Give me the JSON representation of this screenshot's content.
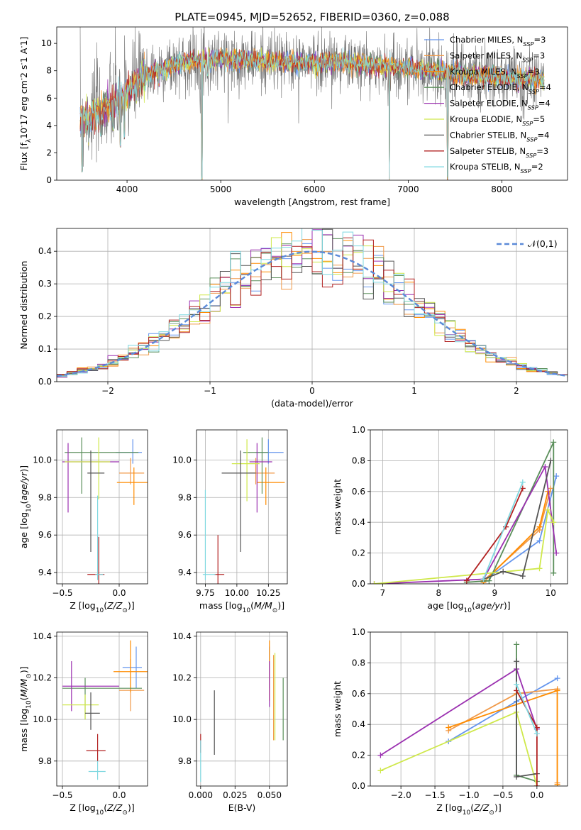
{
  "figure": {
    "title": "PLATE=0945, MJD=52652, FIBERID=0360, z=0.088",
    "series_colors": [
      "#6495ed",
      "#f09a4a",
      "#ff8c00",
      "#5b8f5b",
      "#9b30b0",
      "#cfe84a",
      "#555555",
      "#b22222",
      "#7fd8e0"
    ],
    "legend_labels": [
      "Chabrier MILES, N$_{SSP}$=3",
      "Salpeter MILES, N$_{SSP}$=3",
      "Kroupa MILES, N$_{SSP}$=3",
      "Chabrier ELODIE, N$_{SSP}$=4",
      "Salpeter ELODIE, N$_{SSP}$=4",
      "Kroupa ELODIE, N$_{SSP}$=5",
      "Chabrier STELIB, N$_{SSP}$=4",
      "Salpeter STELIB, N$_{SSP}$=3",
      "Kroupa STELIB, N$_{SSP}$=2"
    ]
  },
  "chart_data": [
    {
      "id": "spectrum",
      "type": "line",
      "xlabel": "wavelength [Angstrom, rest frame]",
      "ylabel": "Flux [f_λ10^-17 erg cm^-2 s^-1 A^-1]",
      "xlim": [
        3250,
        8700
      ],
      "ylim": [
        0,
        11.2
      ],
      "xticks": [
        4000,
        5000,
        6000,
        7000,
        8000
      ],
      "yticks": [
        0,
        2,
        4,
        6,
        8,
        10
      ],
      "legend_position": "upper-right",
      "continuum": [
        [
          3500,
          4.5
        ],
        [
          3700,
          5.0
        ],
        [
          3900,
          5.8
        ],
        [
          4000,
          6.4
        ],
        [
          4100,
          7.2
        ],
        [
          4300,
          8.0
        ],
        [
          4600,
          8.6
        ],
        [
          5000,
          8.9
        ],
        [
          5400,
          8.7
        ],
        [
          5800,
          8.6
        ],
        [
          6200,
          8.7
        ],
        [
          6600,
          8.4
        ],
        [
          7000,
          8.2
        ],
        [
          7400,
          7.9
        ],
        [
          7800,
          7.6
        ],
        [
          8200,
          7.4
        ],
        [
          8450,
          7.3
        ]
      ],
      "dips": [
        [
          3520,
          0.6
        ],
        [
          3590,
          2.5
        ],
        [
          3720,
          3.2
        ],
        [
          3850,
          3.6
        ],
        [
          3930,
          2.4
        ],
        [
          3970,
          3.0
        ],
        [
          4100,
          5.6
        ],
        [
          4340,
          6.8
        ],
        [
          4800,
          0.0
        ],
        [
          4860,
          7.6
        ],
        [
          5180,
          8.0
        ],
        [
          5890,
          8.0
        ],
        [
          6560,
          7.6
        ],
        [
          6800,
          0.0
        ],
        [
          7420,
          0.0
        ]
      ]
    },
    {
      "id": "residuals",
      "type": "histogram",
      "xlabel": "(data-model)/error",
      "ylabel": "Normed distribution",
      "xlim": [
        -2.5,
        2.5
      ],
      "ylim": [
        0,
        0.47
      ],
      "xticks": [
        -2,
        -1,
        0,
        1,
        2
      ],
      "yticks": [
        0.0,
        0.1,
        0.2,
        0.3,
        0.4
      ],
      "legend": "$\\mathcal{N}(0,1)$",
      "legend_position": "upper-right",
      "bin_width": 0.1
    },
    {
      "id": "age-vs-Z",
      "type": "errorbar",
      "xlabel": "Z [log$_{10}$($Z/Z_\\odot$)]",
      "ylabel": "age  [log$_{10}$($age/yr$)]",
      "xlim": [
        -0.55,
        0.25
      ],
      "ylim": [
        9.34,
        10.16
      ],
      "xticks": [
        -0.5,
        0.0
      ],
      "yticks": [
        9.4,
        9.6,
        9.8,
        10.0
      ],
      "points": [
        {
          "x": 0.12,
          "y": 10.04,
          "xerr": [
            0.15,
            0.08
          ],
          "yerr": [
            0.06,
            0.07
          ]
        },
        {
          "x": 0.1,
          "y": 9.93,
          "xerr": [
            0.1,
            0.12
          ],
          "yerr": [
            0.06,
            0.08
          ]
        },
        {
          "x": 0.13,
          "y": 9.88,
          "xerr": [
            0.15,
            0.14
          ],
          "yerr": [
            0.12,
            0.08
          ]
        },
        {
          "x": -0.33,
          "y": 10.04,
          "xerr": [
            0.15,
            0.5
          ],
          "yerr": [
            0.22,
            0.08
          ]
        },
        {
          "x": -0.45,
          "y": 9.99,
          "xerr": [
            0.05,
            0.45
          ],
          "yerr": [
            0.27,
            0.1
          ]
        },
        {
          "x": -0.18,
          "y": 9.99,
          "xerr": [
            0.3,
            0.1
          ],
          "yerr": [
            0.2,
            0.13
          ]
        },
        {
          "x": -0.25,
          "y": 9.93,
          "xerr": [
            0.03,
            0.12
          ],
          "yerr": [
            0.42,
            0.12
          ]
        },
        {
          "x": -0.18,
          "y": 9.39,
          "xerr": [
            0.1,
            0.05
          ],
          "yerr": [
            0.05,
            0.2
          ]
        },
        {
          "x": -0.19,
          "y": 9.39,
          "xerr": [
            0.02,
            0.05
          ],
          "yerr": [
            0.03,
            0.42
          ]
        }
      ]
    },
    {
      "id": "age-vs-mass",
      "type": "errorbar",
      "xlabel": "mass [log$_{10}$($M/M_\\odot$)]",
      "ylabel": "",
      "xlim": [
        9.68,
        10.4
      ],
      "ylim": [
        9.34,
        10.16
      ],
      "xticks": [
        9.75,
        10.0,
        10.25
      ],
      "yticks": [
        9.4,
        9.6,
        9.8,
        10.0
      ],
      "points": [
        {
          "x": 10.25,
          "y": 10.04,
          "xerr": [
            0.1,
            0.12
          ],
          "yerr": [
            0.06,
            0.07
          ]
        },
        {
          "x": 10.15,
          "y": 9.93,
          "xerr": [
            0.05,
            0.15
          ],
          "yerr": [
            0.06,
            0.08
          ]
        },
        {
          "x": 10.23,
          "y": 9.88,
          "xerr": [
            0.07,
            0.15
          ],
          "yerr": [
            0.12,
            0.08
          ]
        },
        {
          "x": 10.2,
          "y": 10.04,
          "xerr": [
            0.15,
            0.05
          ],
          "yerr": [
            0.22,
            0.08
          ]
        },
        {
          "x": 10.16,
          "y": 9.99,
          "xerr": [
            0.06,
            0.12
          ],
          "yerr": [
            0.27,
            0.1
          ]
        },
        {
          "x": 10.08,
          "y": 9.98,
          "xerr": [
            0.12,
            0.1
          ],
          "yerr": [
            0.2,
            0.13
          ]
        },
        {
          "x": 10.03,
          "y": 9.93,
          "xerr": [
            0.15,
            0.12
          ],
          "yerr": [
            0.42,
            0.12
          ]
        },
        {
          "x": 9.85,
          "y": 9.39,
          "xerr": [
            0.03,
            0.05
          ],
          "yerr": [
            0.05,
            0.21
          ]
        },
        {
          "x": 9.75,
          "y": 9.39,
          "xerr": [
            0.02,
            0.08
          ],
          "yerr": [
            0.03,
            0.45
          ]
        }
      ]
    },
    {
      "id": "weights-vs-age",
      "type": "line",
      "xlabel": "age  [log$_{10}$($age/yr$)]",
      "ylabel": "mass weight",
      "xlim": [
        6.78,
        10.3
      ],
      "ylim": [
        0,
        1.0
      ],
      "xticks": [
        7,
        8,
        9,
        10
      ],
      "yticks": [
        0.0,
        0.2,
        0.4,
        0.6,
        0.8,
        1.0
      ],
      "series": [
        {
          "values": [
            [
              8.8,
              0.02
            ],
            [
              9.8,
              0.28
            ],
            [
              10.1,
              0.7
            ]
          ]
        },
        {
          "values": [
            [
              8.8,
              0.02
            ],
            [
              9.8,
              0.35
            ],
            [
              10.0,
              0.62
            ]
          ]
        },
        {
          "values": [
            [
              8.8,
              0.01
            ],
            [
              9.8,
              0.37
            ],
            [
              9.95,
              0.6
            ]
          ]
        },
        {
          "values": [
            [
              8.5,
              0.01
            ],
            [
              8.9,
              0.02
            ],
            [
              10.05,
              0.92
            ],
            [
              10.05,
              0.07
            ]
          ]
        },
        {
          "values": [
            [
              6.85,
              0.0
            ],
            [
              8.8,
              0.03
            ],
            [
              9.9,
              0.76
            ],
            [
              10.1,
              0.2
            ]
          ]
        },
        {
          "values": [
            [
              6.85,
              0.0
            ],
            [
              9.8,
              0.1
            ],
            [
              9.95,
              0.48
            ],
            [
              10.05,
              0.4
            ]
          ]
        },
        {
          "values": [
            [
              8.8,
              0.03
            ],
            [
              9.15,
              0.08
            ],
            [
              9.5,
              0.05
            ],
            [
              10.0,
              0.8
            ]
          ]
        },
        {
          "values": [
            [
              8.5,
              0.02
            ],
            [
              9.2,
              0.37
            ],
            [
              9.5,
              0.62
            ]
          ]
        },
        {
          "values": [
            [
              8.8,
              0.03
            ],
            [
              9.5,
              0.66
            ]
          ]
        }
      ]
    },
    {
      "id": "mass-vs-Z",
      "type": "errorbar",
      "xlabel": "Z [log$_{10}$($Z/Z_\\odot$)]",
      "ylabel": "mass [log$_{10}$($M/M_\\odot$)]",
      "xlim": [
        -0.55,
        0.25
      ],
      "ylim": [
        9.68,
        10.42
      ],
      "xticks": [
        -0.5,
        0.0
      ],
      "yticks": [
        9.8,
        10.0,
        10.2,
        10.4
      ],
      "points": [
        {
          "x": 0.15,
          "y": 10.25,
          "xerr": [
            0.12,
            0.05
          ],
          "yerr": [
            0.1,
            0.1
          ]
        },
        {
          "x": 0.1,
          "y": 10.14,
          "xerr": [
            0.1,
            0.12
          ],
          "yerr": [
            0.1,
            0.15
          ]
        },
        {
          "x": 0.1,
          "y": 10.23,
          "xerr": [
            0.15,
            0.15
          ],
          "yerr": [
            0.1,
            0.15
          ]
        },
        {
          "x": -0.3,
          "y": 10.15,
          "xerr": [
            0.2,
            0.5
          ],
          "yerr": [
            0.15,
            0.05
          ]
        },
        {
          "x": -0.42,
          "y": 10.16,
          "xerr": [
            0.08,
            0.42
          ],
          "yerr": [
            0.12,
            0.12
          ]
        },
        {
          "x": -0.3,
          "y": 10.07,
          "xerr": [
            0.2,
            0.12
          ],
          "yerr": [
            0.07,
            0.05
          ]
        },
        {
          "x": -0.25,
          "y": 10.03,
          "xerr": [
            0.05,
            0.08
          ],
          "yerr": [
            0.08,
            0.1
          ]
        },
        {
          "x": -0.19,
          "y": 9.85,
          "xerr": [
            0.1,
            0.07
          ],
          "yerr": [
            0.05,
            0.08
          ]
        },
        {
          "x": -0.19,
          "y": 9.75,
          "xerr": [
            0.08,
            0.07
          ],
          "yerr": [
            0.04,
            0.05
          ]
        }
      ]
    },
    {
      "id": "mass-vs-EBV",
      "type": "errorbar",
      "xlabel": "E(B-V)",
      "ylabel": "",
      "xlim": [
        -0.003,
        0.063
      ],
      "ylim": [
        9.68,
        10.42
      ],
      "xticks": [
        0.0,
        0.025,
        0.05
      ],
      "yticks": [
        9.8,
        10.0,
        10.2,
        10.4
      ],
      "points": [
        {
          "x": 0.05,
          "y": 10.25,
          "xerr": [
            0,
            0
          ],
          "yerr": [
            0.1,
            0.1
          ]
        },
        {
          "x": 0.053,
          "y": 10.14,
          "xerr": [
            0,
            0
          ],
          "yerr": [
            0.24,
            0.17
          ]
        },
        {
          "x": 0.05,
          "y": 10.23,
          "xerr": [
            0,
            0
          ],
          "yerr": [
            0.14,
            0.15
          ]
        },
        {
          "x": 0.06,
          "y": 10.05,
          "xerr": [
            0,
            0
          ],
          "yerr": [
            0.15,
            0.15
          ]
        },
        {
          "x": 0.05,
          "y": 10.16,
          "xerr": [
            0,
            0
          ],
          "yerr": [
            0.1,
            0.12
          ]
        },
        {
          "x": 0.054,
          "y": 10.1,
          "xerr": [
            0,
            0
          ],
          "yerr": [
            0.2,
            0.22
          ]
        },
        {
          "x": 0.01,
          "y": 9.98,
          "xerr": [
            0,
            0
          ],
          "yerr": [
            0.15,
            0.16
          ]
        },
        {
          "x": 0.0,
          "y": 9.9,
          "xerr": [
            0,
            0
          ],
          "yerr": [
            0.06,
            0.03
          ]
        },
        {
          "x": 0.0,
          "y": 9.8,
          "xerr": [
            0,
            0
          ],
          "yerr": [
            0.1,
            0.1
          ]
        }
      ]
    },
    {
      "id": "weights-vs-Z",
      "type": "line",
      "xlabel": "Z [log$_{10}$($Z/Z_\\odot$)]",
      "ylabel": "mass weight",
      "xlim": [
        -2.45,
        0.45
      ],
      "ylim": [
        0,
        1.0
      ],
      "xticks": [
        -2.0,
        -1.5,
        -1.0,
        -0.5,
        0.0
      ],
      "yticks": [
        0.0,
        0.2,
        0.4,
        0.6,
        0.8,
        1.0
      ],
      "series": [
        {
          "values": [
            [
              -1.3,
              0.29
            ],
            [
              -0.3,
              0.55
            ],
            [
              0.3,
              0.7
            ]
          ]
        },
        {
          "values": [
            [
              -1.3,
              0.36
            ],
            [
              -0.3,
              0.6
            ],
            [
              0.3,
              0.63
            ],
            [
              0.3,
              0.02
            ]
          ]
        },
        {
          "values": [
            [
              -1.3,
              0.38
            ],
            [
              0.3,
              0.62
            ],
            [
              0.3,
              0.01
            ]
          ]
        },
        {
          "values": [
            [
              -0.3,
              0.92
            ],
            [
              -0.3,
              0.07
            ],
            [
              0.0,
              0.03
            ]
          ]
        },
        {
          "values": [
            [
              -2.3,
              0.2
            ],
            [
              -0.3,
              0.76
            ],
            [
              0.0,
              0.37
            ]
          ]
        },
        {
          "values": [
            [
              -2.3,
              0.1
            ],
            [
              -0.3,
              0.48
            ],
            [
              0.0,
              0.0
            ]
          ]
        },
        {
          "values": [
            [
              -0.3,
              0.81
            ],
            [
              -0.3,
              0.06
            ],
            [
              0.0,
              0.08
            ]
          ]
        },
        {
          "values": [
            [
              -0.3,
              0.62
            ],
            [
              0.0,
              0.38
            ],
            [
              0.0,
              0.0
            ]
          ]
        },
        {
          "values": [
            [
              -0.3,
              0.66
            ],
            [
              0.0,
              0.34
            ]
          ]
        }
      ]
    }
  ]
}
